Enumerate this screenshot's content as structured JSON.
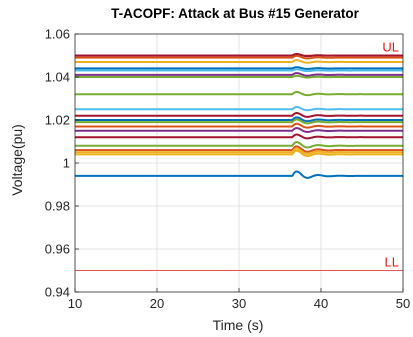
{
  "chart_data": {
    "type": "line",
    "title": "T-ACOPF: Attack at Bus #15 Generator",
    "xlabel": "Time (s)",
    "ylabel": "Voltage(pu)",
    "xlim": [
      10,
      50
    ],
    "ylim": [
      0.94,
      1.06
    ],
    "xticks": [
      10,
      20,
      30,
      40,
      50
    ],
    "yticks": [
      0.94,
      0.96,
      0.98,
      1.0,
      1.02,
      1.04,
      1.06
    ],
    "xtick_labels": [
      "10",
      "20",
      "30",
      "40",
      "50"
    ],
    "ytick_labels": [
      "0.94",
      "0.96",
      "0.98",
      "1",
      "1.02",
      "1.04",
      "1.06"
    ],
    "grid": true,
    "disturbance_time": 36.5,
    "limits": [
      {
        "label": "UL",
        "value": 1.05,
        "color": "#e31a1c"
      },
      {
        "label": "LL",
        "value": 0.95,
        "color": "#e31a1c"
      }
    ],
    "series": [
      {
        "v": 1.05,
        "color": "#a2142f",
        "amp": 0.001
      },
      {
        "v": 1.049,
        "color": "#d95319",
        "amp": 0.0012
      },
      {
        "v": 1.047,
        "color": "#edb120",
        "amp": 0.0012
      },
      {
        "v": 1.044,
        "color": "#0072bd",
        "amp": 0.0008
      },
      {
        "v": 1.043,
        "color": "#4dbeee",
        "amp": 0.0008
      },
      {
        "v": 1.041,
        "color": "#7e2f8e",
        "amp": 0.0012
      },
      {
        "v": 1.04,
        "color": "#77ac30",
        "amp": 0.0008
      },
      {
        "v": 1.032,
        "color": "#77ac30",
        "amp": 0.0015
      },
      {
        "v": 1.025,
        "color": "#4dbeee",
        "amp": 0.0015
      },
      {
        "v": 1.022,
        "color": "#a2142f",
        "amp": 0.0018
      },
      {
        "v": 1.02,
        "color": "#0072bd",
        "amp": 0.0018
      },
      {
        "v": 1.019,
        "color": "#77ac30",
        "amp": 0.0018
      },
      {
        "v": 1.017,
        "color": "#d95319",
        "amp": 0.0018
      },
      {
        "v": 1.015,
        "color": "#7e2f8e",
        "amp": 0.0018
      },
      {
        "v": 1.012,
        "color": "#a2142f",
        "amp": 0.0018
      },
      {
        "v": 1.008,
        "color": "#77ac30",
        "amp": 0.0025
      },
      {
        "v": 1.006,
        "color": "#d95319",
        "amp": 0.0025
      },
      {
        "v": 1.005,
        "color": "#edb120",
        "amp": 0.0025
      },
      {
        "v": 1.004,
        "color": "#edb120",
        "amp": 0.0025
      },
      {
        "v": 0.994,
        "color": "#0072bd",
        "amp": 0.003
      }
    ]
  }
}
